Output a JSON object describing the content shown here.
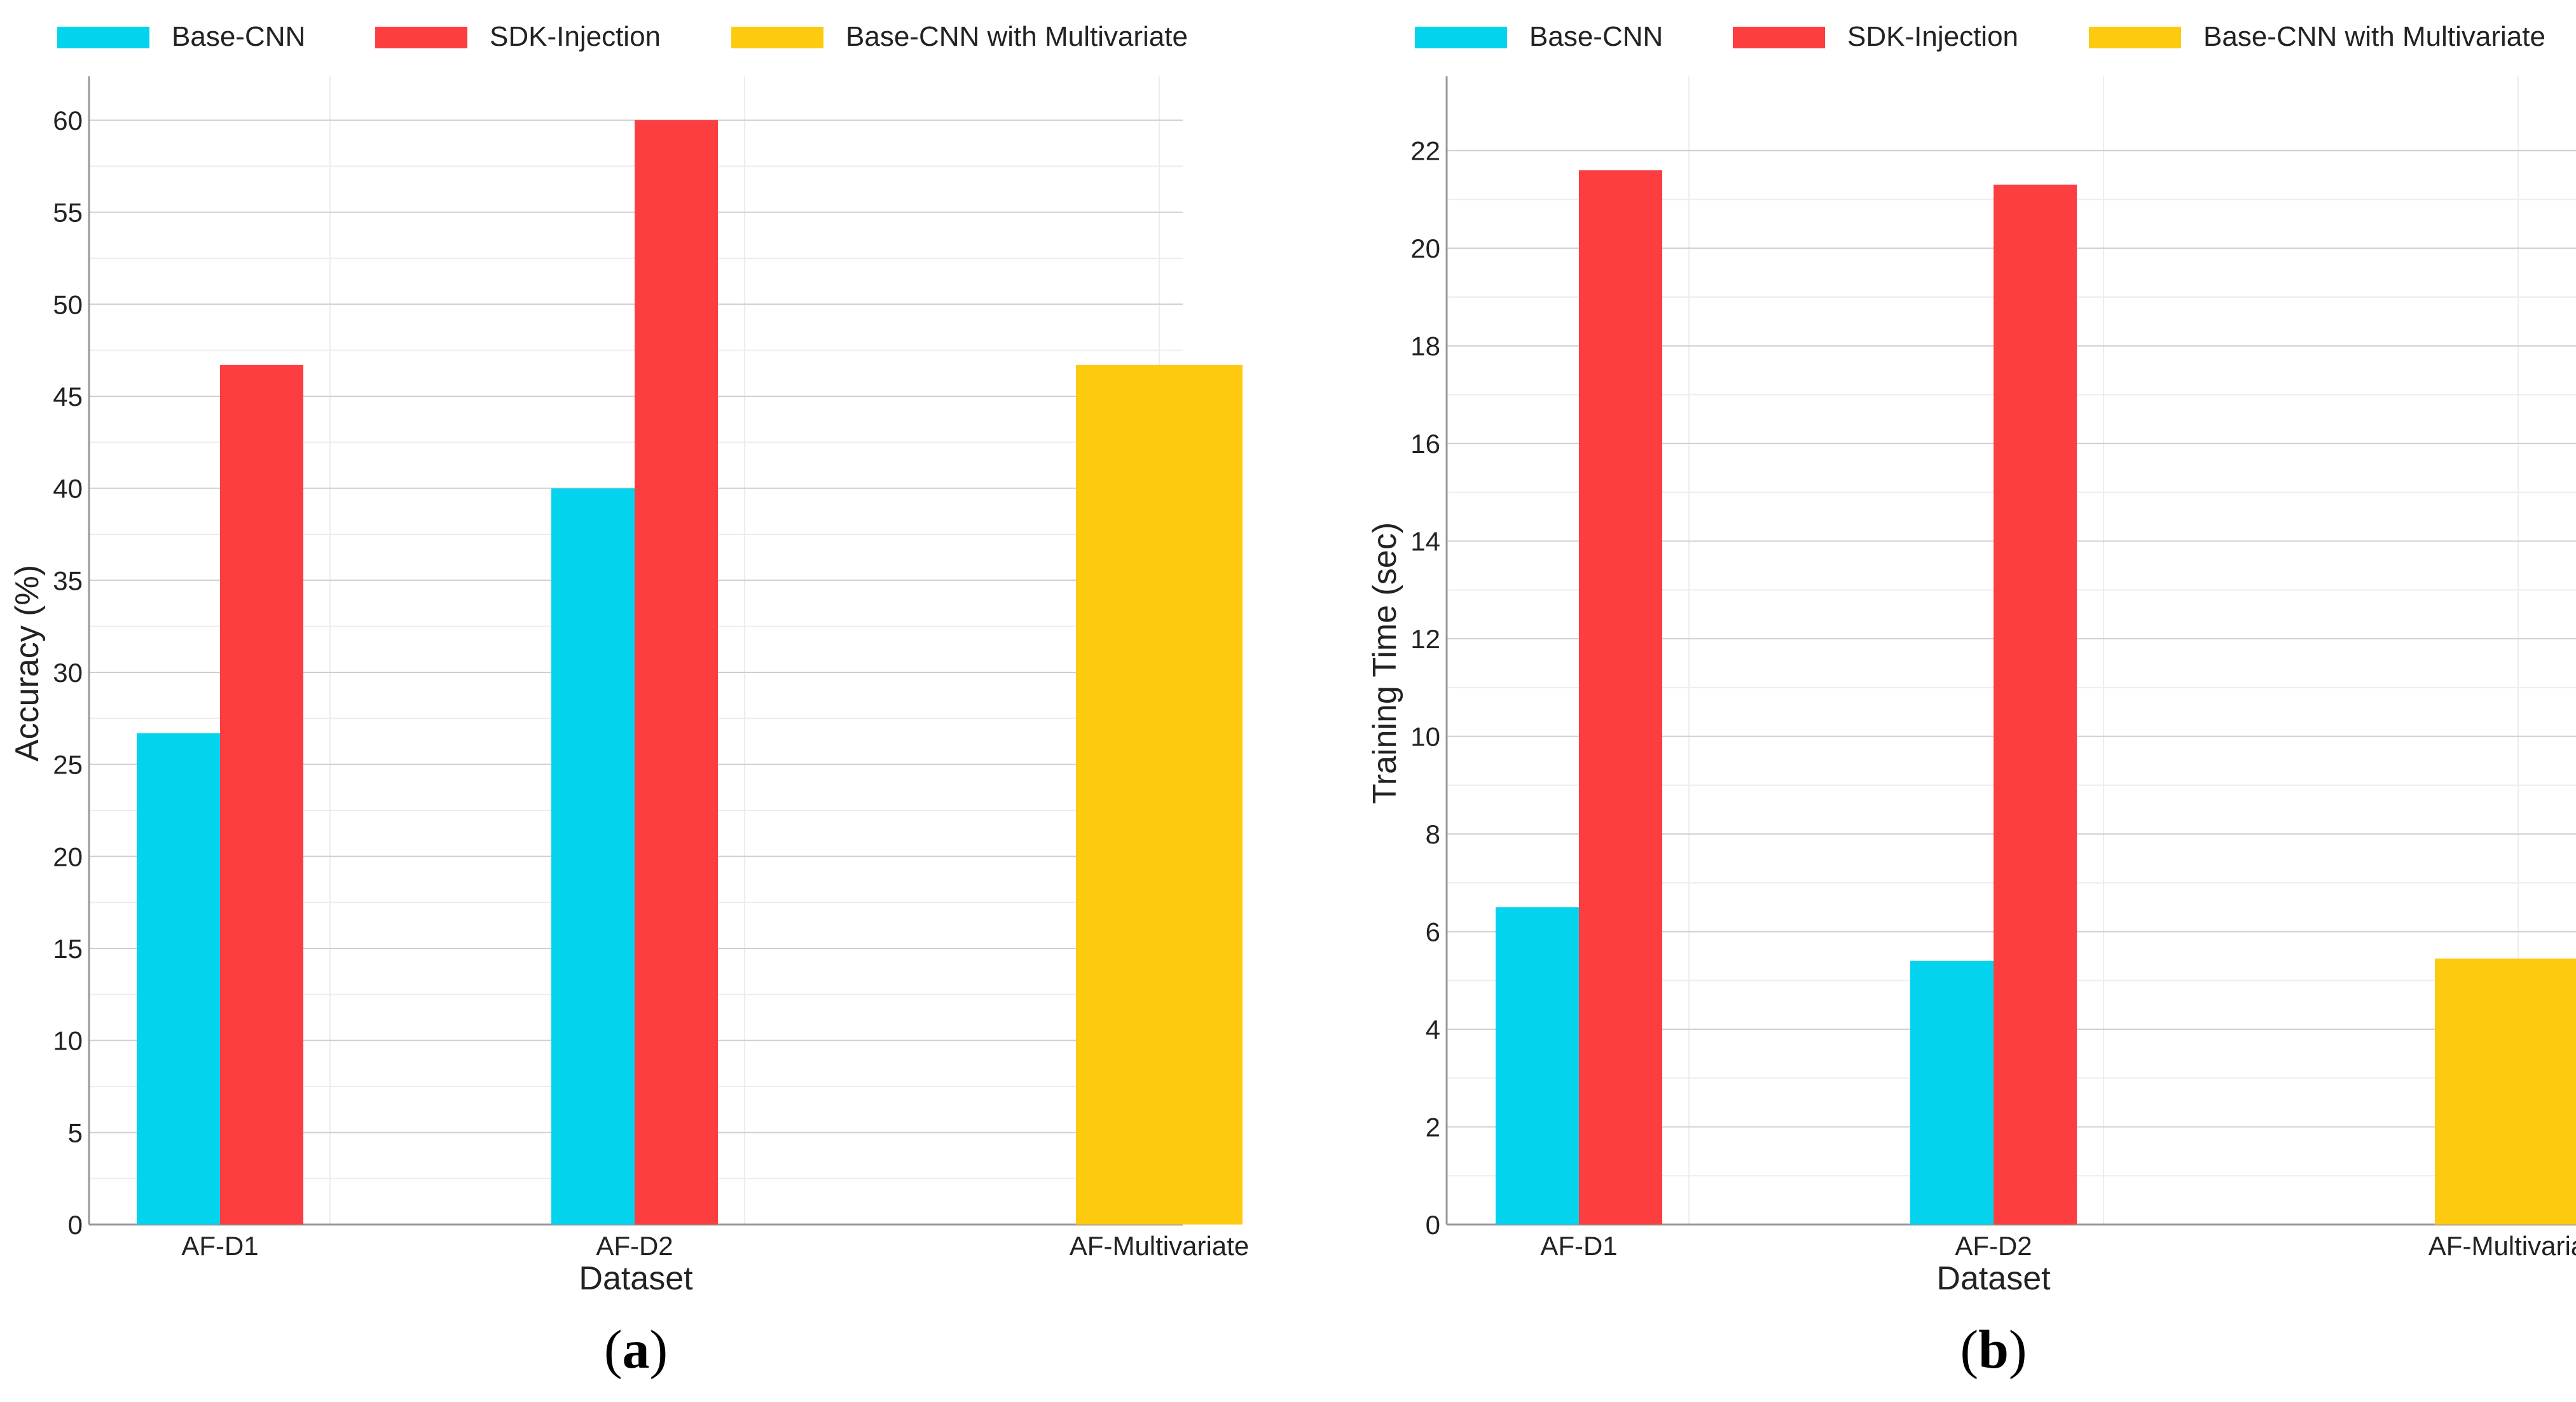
{
  "colors": {
    "Base-CNN": "#04d3ee",
    "SDK-Injection": "#fd3e40",
    "Base-CNN with Multivariate": "#fdca10",
    "grid_major": "#cfcfcf",
    "grid_minor": "#ededed",
    "axis": "#999999"
  },
  "chart_data": [
    {
      "panel_label": "a",
      "type": "bar",
      "title": "",
      "xlabel": "Dataset",
      "ylabel": "Accuracy (%)",
      "categories": [
        "AF-D1",
        "AF-D2",
        "AF-Multivariate"
      ],
      "ylim": [
        0,
        61
      ],
      "yticks": [
        0,
        5,
        10,
        15,
        20,
        25,
        30,
        35,
        40,
        45,
        50,
        55,
        60
      ],
      "grid": true,
      "legend_position": "top",
      "series": [
        {
          "name": "Base-CNN",
          "values": [
            26.7,
            40.0,
            null
          ]
        },
        {
          "name": "SDK-Injection",
          "values": [
            46.7,
            60.0,
            null
          ]
        },
        {
          "name": "Base-CNN with Multivariate",
          "values": [
            null,
            null,
            46.7
          ]
        }
      ]
    },
    {
      "panel_label": "b",
      "type": "bar",
      "title": "",
      "xlabel": "Dataset",
      "ylabel": "Training Time (sec)",
      "categories": [
        "AF-D1",
        "AF-D2",
        "AF-Multivariate"
      ],
      "ylim": [
        0,
        23
      ],
      "yticks": [
        0,
        2,
        4,
        6,
        8,
        10,
        12,
        14,
        16,
        18,
        20,
        22
      ],
      "grid": true,
      "legend_position": "top",
      "series": [
        {
          "name": "Base-CNN",
          "values": [
            6.5,
            5.4,
            null
          ]
        },
        {
          "name": "SDK-Injection",
          "values": [
            21.6,
            21.3,
            null
          ]
        },
        {
          "name": "Base-CNN with Multivariate",
          "values": [
            null,
            null,
            5.45
          ]
        }
      ]
    }
  ]
}
